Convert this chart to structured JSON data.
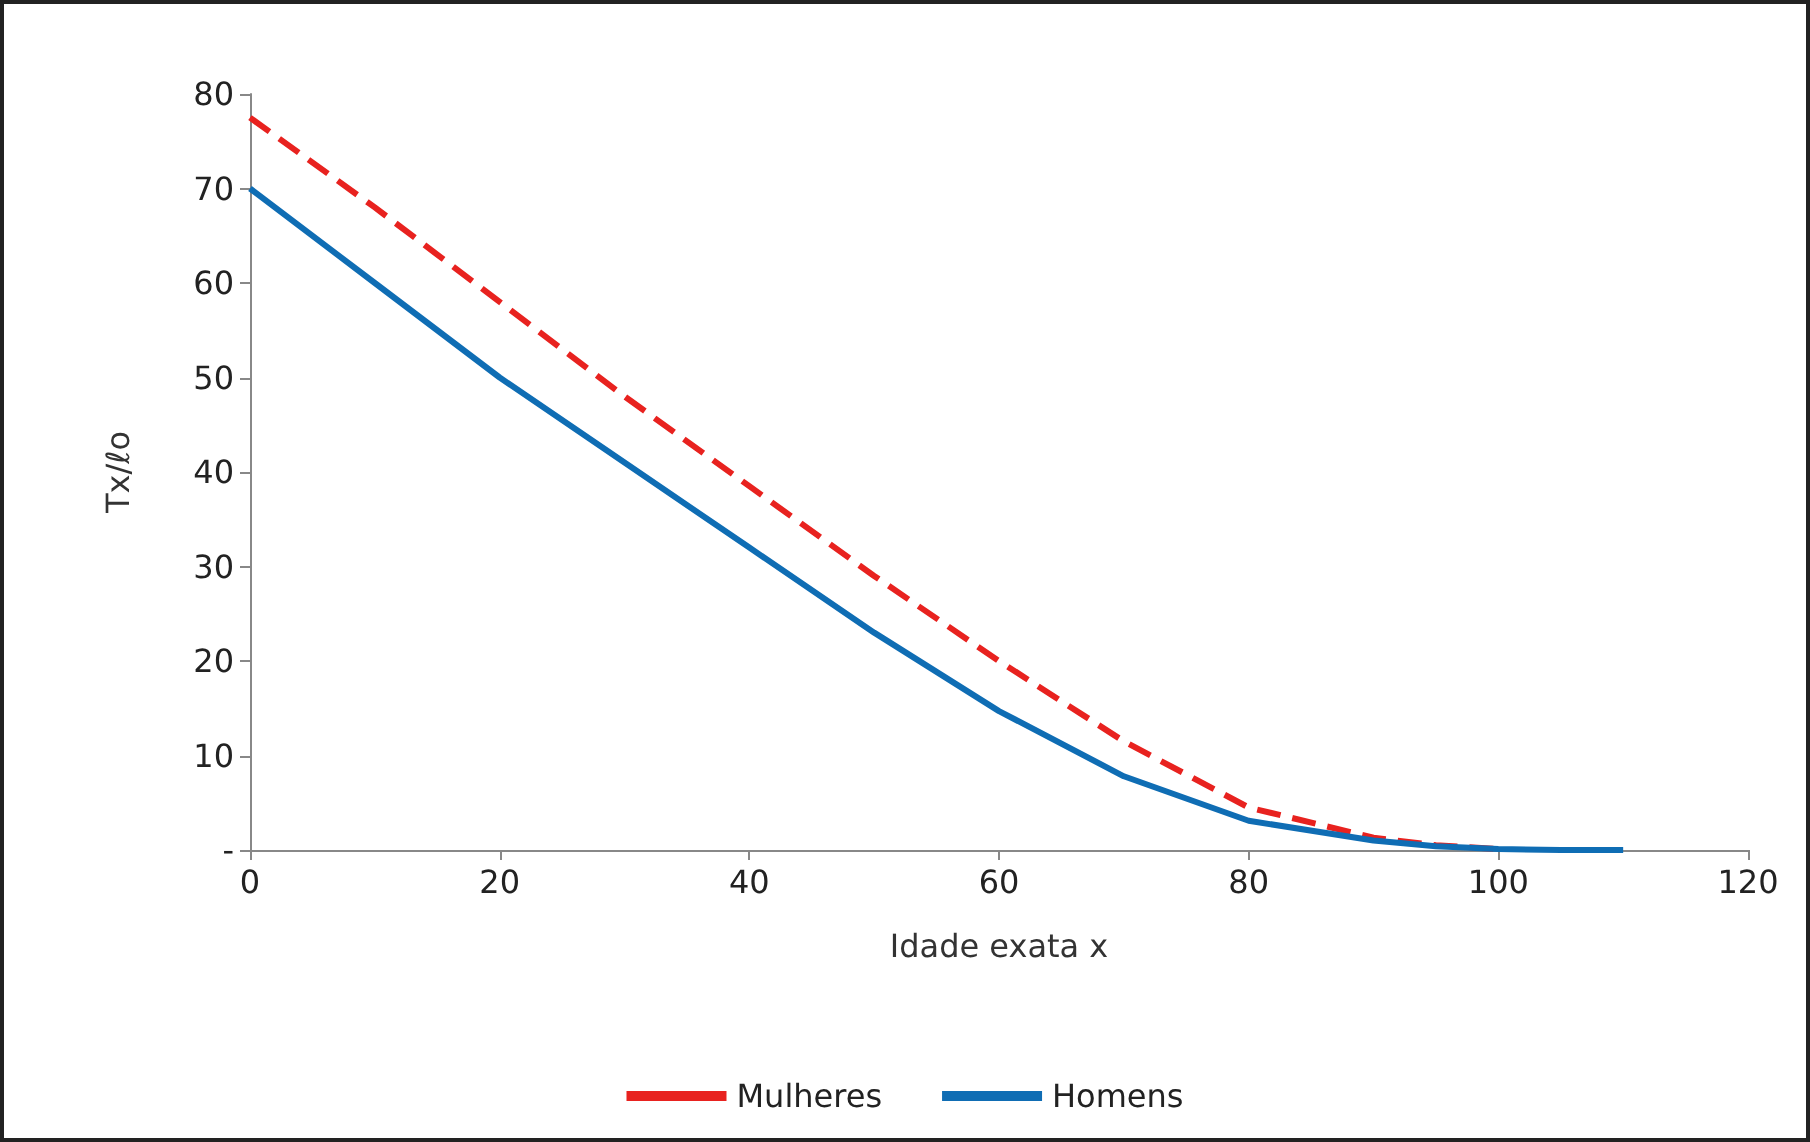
{
  "chart_data": {
    "type": "line",
    "xlabel": "Idade exata x",
    "ylabel": "Tx/ℓo",
    "x": [
      0,
      10,
      20,
      30,
      40,
      50,
      60,
      70,
      80,
      90,
      95,
      100,
      105,
      110
    ],
    "series": [
      {
        "name": "Mulheres",
        "color": "#e8221f",
        "line_style": "dashed",
        "x": [
          0,
          10,
          20,
          30,
          40,
          50,
          60,
          70,
          80,
          90,
          95,
          100
        ],
        "values": [
          77.5,
          68,
          58,
          48,
          38.5,
          29,
          20,
          11.5,
          4.5,
          1.3,
          0.5,
          0.1
        ]
      },
      {
        "name": "Homens",
        "color": "#0f6db4",
        "line_style": "solid",
        "values": [
          70,
          60,
          50,
          41,
          32,
          23,
          14.7,
          7.8,
          3.1,
          1,
          0.4,
          0.1,
          0,
          0
        ]
      }
    ],
    "xlim": [
      0,
      120
    ],
    "xticks": [
      0,
      20,
      40,
      60,
      80,
      100,
      120
    ],
    "ylim": [
      0,
      80
    ],
    "yticks": [
      {
        "value": 0,
        "label": "-"
      },
      10,
      20,
      30,
      40,
      50,
      60,
      70,
      80
    ],
    "grid": false,
    "legend": "bottom",
    "marker": "none"
  }
}
